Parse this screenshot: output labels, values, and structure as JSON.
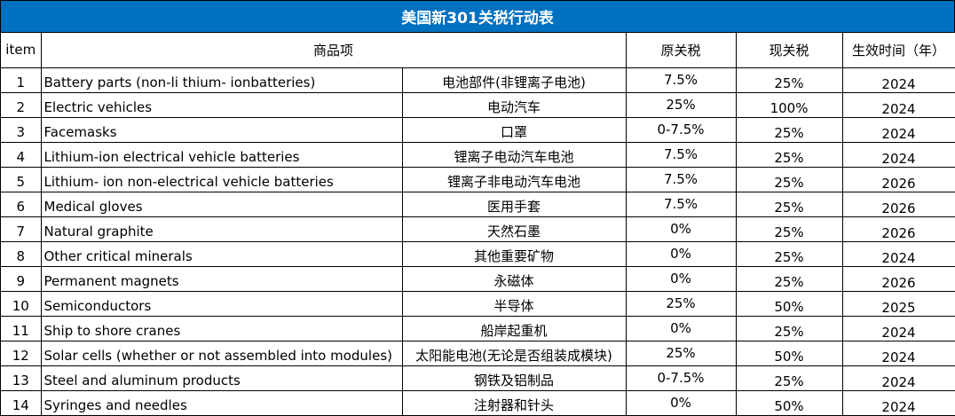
{
  "title": "美国新301关税行动表",
  "headers": {
    "item": "item",
    "product": "商品项",
    "original_tariff": "原关税",
    "current_tariff": "现关税",
    "effective_year": "生效时间（年）"
  },
  "rows": [
    {
      "item": "1",
      "en": "Battery parts (non-li thium- ionbatteries)",
      "cn": "电池部件(非锂离子电池)",
      "orig": "7.5%",
      "cur": "25%",
      "year": "2024"
    },
    {
      "item": "2",
      "en": "Electric vehicles",
      "cn": "电动汽车",
      "orig": "25%",
      "cur": "100%",
      "year": "2024"
    },
    {
      "item": "3",
      "en": "Facemasks",
      "cn": "口罩",
      "orig": "0-7.5%",
      "cur": "25%",
      "year": "2024"
    },
    {
      "item": "4",
      "en": "Lithium-ion electrical vehicle batteries",
      "cn": "锂离子电动汽车电池",
      "orig": "7.5%",
      "cur": "25%",
      "year": "2024"
    },
    {
      "item": "5",
      "en": "Lithium- ion non-electrical vehicle batteries",
      "cn": "锂离子非电动汽车电池",
      "orig": "7.5%",
      "cur": "25%",
      "year": "2026"
    },
    {
      "item": "6",
      "en": "Medical gloves",
      "cn": "医用手套",
      "orig": "7.5%",
      "cur": "25%",
      "year": "2026"
    },
    {
      "item": "7",
      "en": "Natural graphite",
      "cn": "天然石墨",
      "orig": "0%",
      "cur": "25%",
      "year": "2026"
    },
    {
      "item": "8",
      "en": "Other critical minerals",
      "cn": "其他重要矿物",
      "orig": "0%",
      "cur": "25%",
      "year": "2024"
    },
    {
      "item": "9",
      "en": "Permanent magnets",
      "cn": "永磁体",
      "orig": "0%",
      "cur": "25%",
      "year": "2026"
    },
    {
      "item": "10",
      "en": "Semiconductors",
      "cn": "半导体",
      "orig": "25%",
      "cur": "50%",
      "year": "2025"
    },
    {
      "item": "11",
      "en": "Ship to shore cranes",
      "cn": "船岸起重机",
      "orig": "0%",
      "cur": "25%",
      "year": "2024"
    },
    {
      "item": "12",
      "en": "Solar cells (whether or not assembled into modules)",
      "cn": "太阳能电池(无论是否组装成模块)",
      "orig": "25%",
      "cur": "50%",
      "year": "2024"
    },
    {
      "item": "13",
      "en": "Steel and aluminum products",
      "cn": "钢铁及铝制品",
      "orig": "0-7.5%",
      "cur": "25%",
      "year": "2024"
    },
    {
      "item": "14",
      "en": "Syringes and needles",
      "cn": "注射器和针头",
      "orig": "0%",
      "cur": "50%",
      "year": "2024"
    }
  ],
  "colors": {
    "title_background": "#0070c0",
    "title_text": "#ffffff",
    "grid_line": "#000000"
  }
}
